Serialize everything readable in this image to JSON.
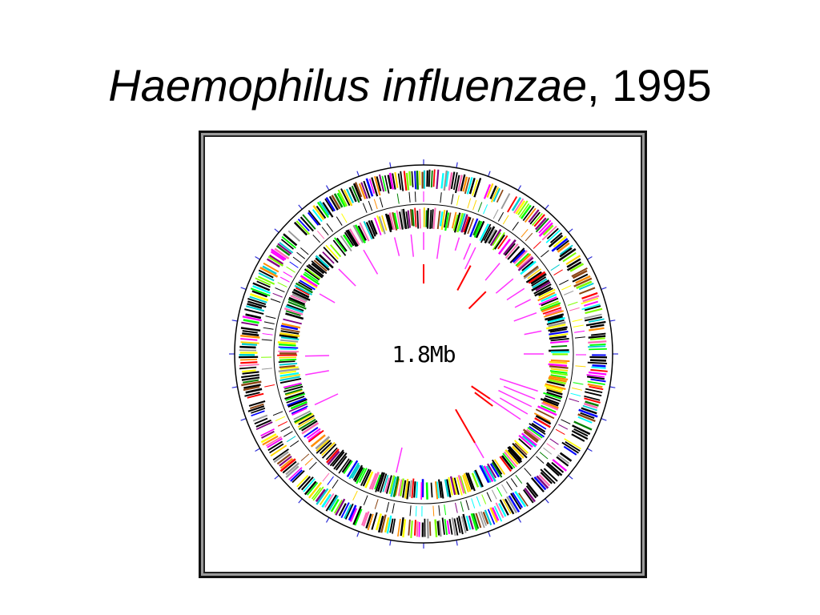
{
  "slide": {
    "title_species": "Haemophilus influenzae",
    "title_rest": ", 1995"
  },
  "genome_map": {
    "center_label": "1.8Mb",
    "colors": {
      "frame": "#111111",
      "outline": "#000000",
      "scale_ticks": "#2b2bd6",
      "rna_magenta": "#ff33ff",
      "rna_red": "#ff0000",
      "gene_palette": [
        "#000000",
        "#00ff00",
        "#ff00ff",
        "#00ffff",
        "#ffff00",
        "#ff0000",
        "#0000ff",
        "#ff8c00",
        "#008000",
        "#800080",
        "#999999",
        "#ff69b4",
        "#00ced1",
        "#7fff00",
        "#8b4513",
        "#ffd700"
      ]
    },
    "rings": [
      "outer-strand-genes",
      "inner-strand-genes"
    ]
  }
}
